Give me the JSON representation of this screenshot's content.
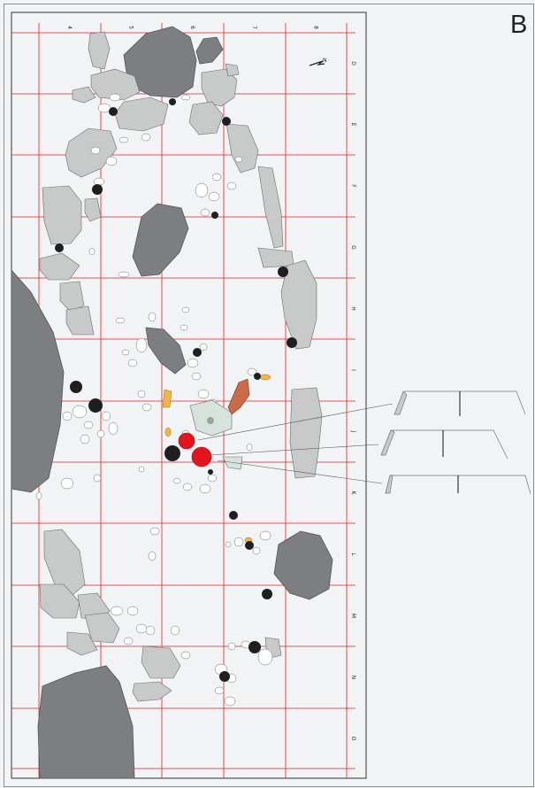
{
  "panel_label": "B",
  "north_label": "N",
  "grid": {
    "column_labels": [
      "4",
      "5",
      "6",
      "7",
      "8"
    ],
    "row_labels": [
      "D",
      "E",
      "F",
      "G",
      "H",
      "I",
      "J",
      "K",
      "L",
      "M",
      "N",
      "O"
    ]
  },
  "colors": {
    "grid_line": "#e02020",
    "large_stone": "#7d7e82",
    "stone": "#c8cac9",
    "small_stone": "#ffffff",
    "charcoal": "#1f1f1f",
    "red_marker": "#e4141e",
    "ochre": "#f3b54a",
    "copper": "#c96a48",
    "pale_green": "#d6e2dc"
  },
  "sections": [
    {
      "name": "section-1"
    },
    {
      "name": "section-2"
    },
    {
      "name": "section-3"
    }
  ]
}
